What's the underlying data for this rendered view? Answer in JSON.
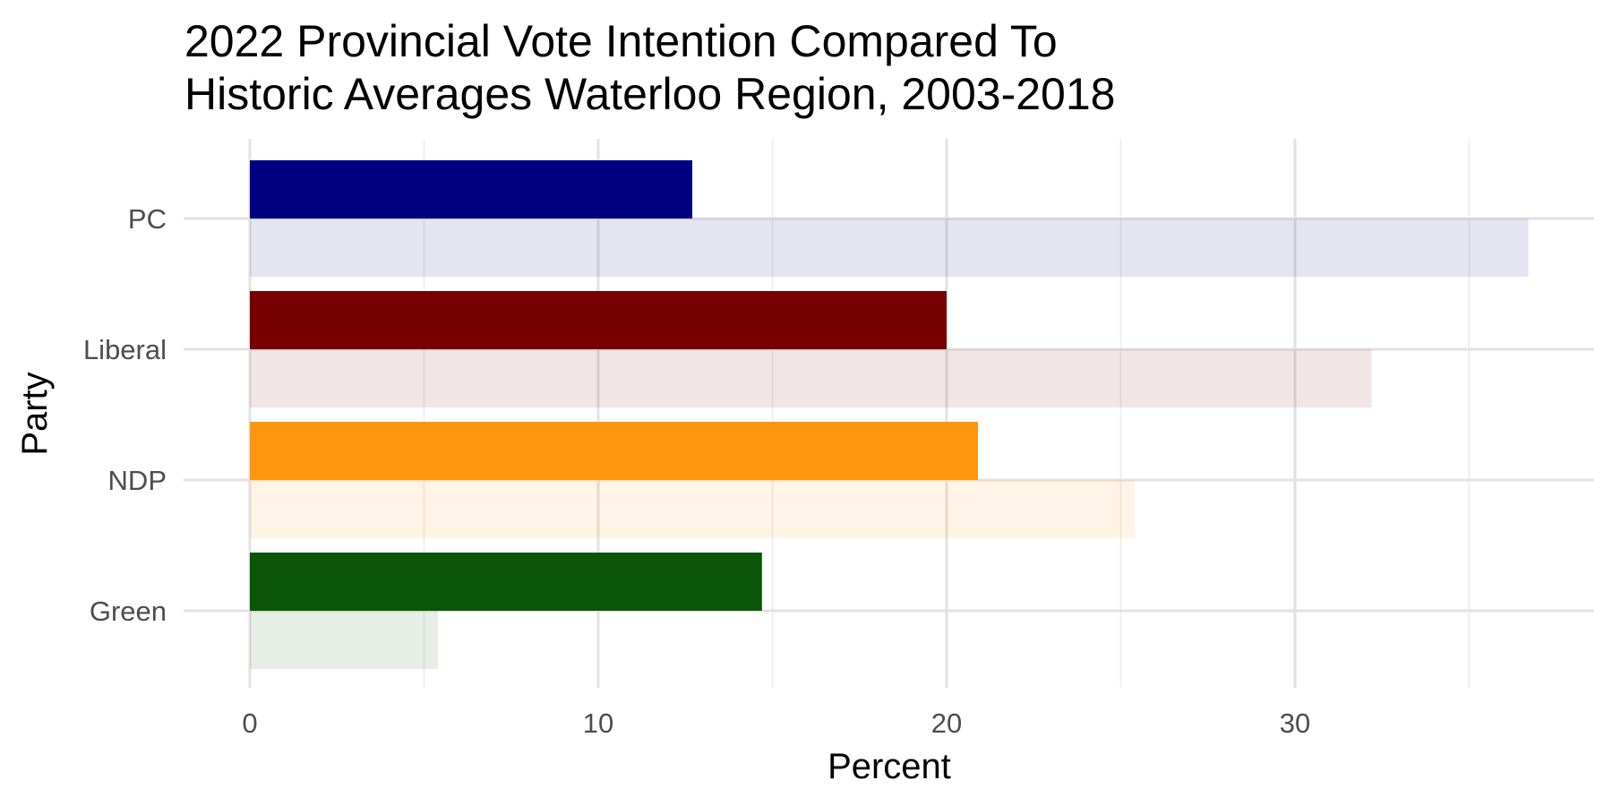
{
  "chart_data": {
    "type": "bar",
    "orientation": "horizontal",
    "title": [
      "2022 Provincial Vote Intention Compared To",
      "Historic Averages Waterloo Region, 2003-2018"
    ],
    "xlabel": "Percent",
    "ylabel": "Party",
    "xlim": [
      0,
      38
    ],
    "x_ticks": [
      0,
      10,
      20,
      30
    ],
    "x_minor_ticks": [
      5,
      15,
      25,
      35
    ],
    "grid": true,
    "categories": [
      "PC",
      "Liberal",
      "NDP",
      "Green"
    ],
    "series": [
      {
        "values": [
          12.7,
          20.0,
          20.9,
          14.7
        ],
        "colors": [
          "#000080",
          "#780000",
          "#FF960E",
          "#0B5506"
        ],
        "opacity": 1.0
      },
      {
        "values": [
          36.7,
          32.2,
          25.4,
          5.4
        ],
        "colors": [
          "#000080",
          "#780000",
          "#FF960E",
          "#0B5506"
        ],
        "opacity": 0.1
      }
    ]
  }
}
